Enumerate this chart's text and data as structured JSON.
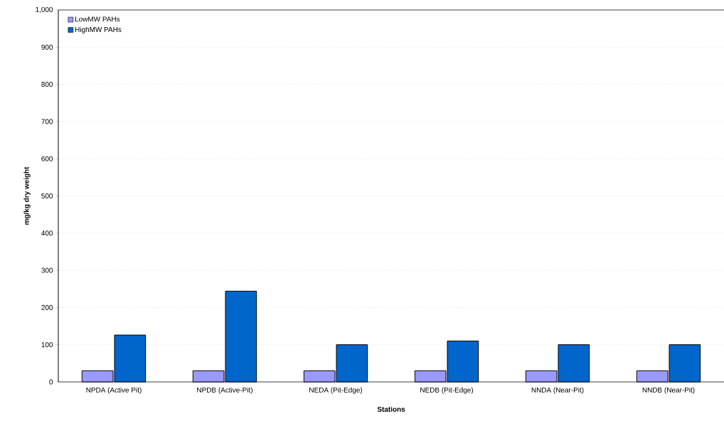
{
  "chart_data": {
    "type": "bar",
    "xlabel": "Stations",
    "ylabel": "mg/kg dry weight",
    "categories": [
      "NPDA (Active Pit)",
      "NPDB (Active-Pit)",
      "NEDA (Pit-Edge)",
      "NEDB (Pit-Edge)",
      "NNDA (Near-Pit)",
      "NNDB (Near-Pit)"
    ],
    "series": [
      {
        "name": "LowMW PAHs",
        "color": "#9999ff",
        "values": [
          30,
          30,
          30,
          30,
          30,
          30
        ]
      },
      {
        "name": "HighMW PAHs",
        "color": "#0066cc",
        "values": [
          126,
          244,
          100,
          110,
          100,
          100
        ]
      }
    ],
    "ylim": [
      0,
      1000
    ],
    "yticks": [
      0,
      {
        "value": 100,
        "label": "100"
      },
      {
        "value": 200,
        "label": "200"
      },
      {
        "value": 300,
        "label": "300"
      },
      {
        "value": 400,
        "label": "400"
      },
      {
        "value": 500,
        "label": "500"
      },
      {
        "value": 600,
        "label": "600"
      },
      {
        "value": 700,
        "label": "700"
      },
      {
        "value": 800,
        "label": "800"
      },
      {
        "value": 900,
        "label": "900"
      },
      {
        "value": 1000,
        "label": "1,000"
      }
    ],
    "grid": "y",
    "legend": "top left"
  }
}
